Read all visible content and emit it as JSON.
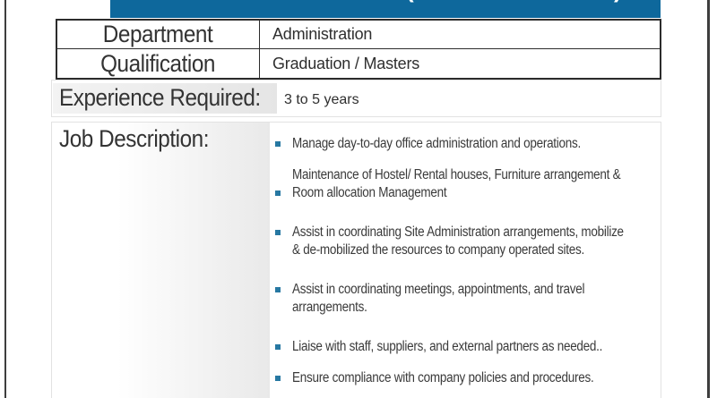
{
  "header": {
    "bar_color": "#0e689c",
    "paren_open": "(",
    "paren_close": ")"
  },
  "info_table": {
    "rows": [
      {
        "label": "Department",
        "value": "Administration"
      },
      {
        "label": "Qualification",
        "value": "Graduation / Masters"
      }
    ]
  },
  "experience": {
    "label": "Experience Required:",
    "value": "3 to 5 years"
  },
  "job_description": {
    "label": "Job Description:",
    "bullet_color": "#2778a2",
    "items": [
      {
        "text": "Manage day-to-day office administration and operations."
      },
      {
        "text": "Maintenance of Hostel/ Rental houses, Furniture arrangement &\nRoom allocation Management"
      },
      {
        "text": "Assist in coordinating Site Administration arrangements, mobilize\n& de-mobilized the resources to company operated sites."
      },
      {
        "text": "Assist in coordinating meetings, appointments, and travel\narrangements."
      },
      {
        "text": "Liaise with staff, suppliers, and external partners as needed.."
      },
      {
        "text": "Ensure compliance with company policies and procedures."
      }
    ]
  }
}
